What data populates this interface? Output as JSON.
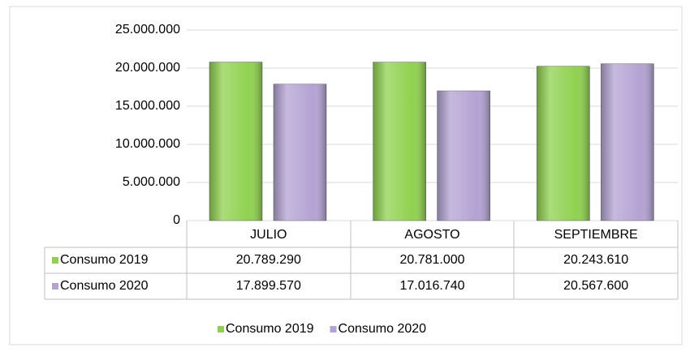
{
  "chart_data": {
    "type": "bar",
    "categories": [
      "JULIO",
      "AGOSTO",
      "SEPTIEMBRE"
    ],
    "series": [
      {
        "name": "Consumo 2019",
        "color": "#8fd14f",
        "values": [
          20789290,
          20781000,
          20243610
        ],
        "value_labels": [
          "20.789.290",
          "20.781.000",
          "20.243.610"
        ]
      },
      {
        "name": "Consumo 2020",
        "color": "#b3a2d3",
        "values": [
          17899570,
          17016740,
          20567600
        ],
        "value_labels": [
          "17.899.570",
          "17.016.740",
          "20.567.600"
        ]
      }
    ],
    "ylim": [
      0,
      25000000
    ],
    "yticks": [
      0,
      {
        "value": 5000000,
        "label": "5.000.000"
      },
      {
        "value": 10000000,
        "label": "10.000.000"
      },
      {
        "value": 15000000,
        "label": "15.000.000"
      },
      {
        "value": 20000000,
        "label": "20.000.000"
      },
      {
        "value": 25000000,
        "label": "25.000.000"
      }
    ],
    "grid": true,
    "legend": "bottom"
  }
}
